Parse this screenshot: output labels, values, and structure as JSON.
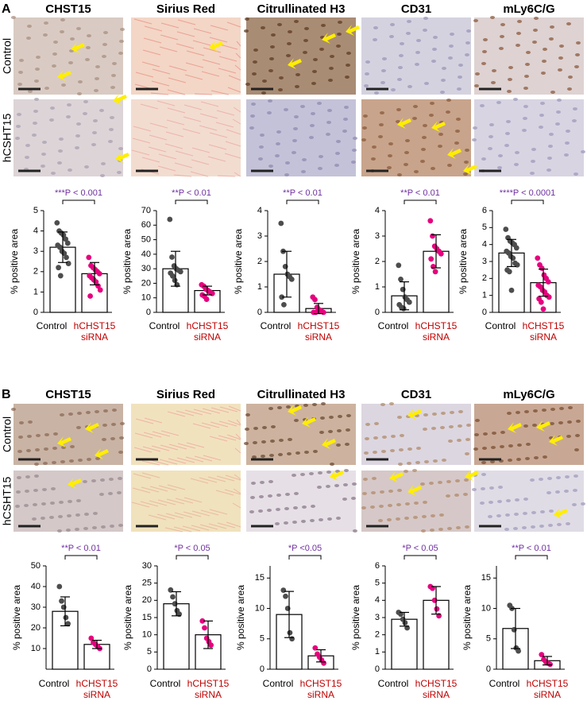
{
  "panels": [
    {
      "label": "A",
      "columns": [
        "CHST15",
        "Sirius Red",
        "Citrullinated H3",
        "CD31",
        "mLy6C/G"
      ],
      "rows": [
        "Control",
        "hCSHT15"
      ]
    },
    {
      "label": "B",
      "columns": [
        "CHST15",
        "Sirius Red",
        "Citrullinated H3",
        "CD31",
        "mLy6C/G"
      ],
      "rows": [
        "Control",
        "hCSHT15"
      ]
    }
  ],
  "chart_data": [
    {
      "type": "bar",
      "annotation": "***P < 0.001",
      "y_label": "% positive area",
      "categories": [
        "Control",
        "hCHST15 siRNA"
      ],
      "values": [
        3.2,
        1.9
      ],
      "errors": [
        0.75,
        0.55
      ],
      "points": [
        [
          4.4,
          4.0,
          3.9,
          3.8,
          3.6,
          3.4,
          3.3,
          3.2,
          3.0,
          2.9,
          2.7,
          2.4,
          2.2,
          1.8
        ],
        [
          2.7,
          2.3,
          2.2,
          2.1,
          2.0,
          1.9,
          1.8,
          1.7,
          1.6,
          1.5,
          1.3,
          1.1,
          0.8
        ]
      ],
      "ylim": [
        0,
        5
      ],
      "yticks": [
        0,
        1,
        2,
        3,
        4,
        5
      ]
    },
    {
      "type": "bar",
      "annotation": "**P < 0.01",
      "y_label": "% positive area",
      "categories": [
        "Control",
        "hCHST15 siRNA"
      ],
      "values": [
        30,
        15
      ],
      "errors": [
        12,
        3
      ],
      "points": [
        [
          64,
          38,
          32,
          30,
          29,
          28,
          27,
          25,
          22,
          19
        ],
        [
          19,
          18,
          16,
          15,
          14,
          13,
          12,
          11,
          9
        ]
      ],
      "ylim": [
        0,
        70
      ],
      "yticks": [
        0,
        10,
        20,
        30,
        40,
        50,
        60,
        70
      ]
    },
    {
      "type": "bar",
      "annotation": "**P < 0.01",
      "y_label": "% positive area",
      "categories": [
        "Control",
        "hCHST15 siRNA"
      ],
      "values": [
        1.5,
        0.15
      ],
      "errors": [
        0.9,
        0.2
      ],
      "points": [
        [
          3.5,
          2.4,
          1.8,
          1.5,
          1.4,
          1.3,
          0.6,
          0.3
        ],
        [
          0.6,
          0.5,
          0.2,
          0.1,
          0.05,
          0,
          0,
          0
        ]
      ],
      "ylim": [
        0,
        4
      ],
      "yticks": [
        0,
        1,
        2,
        3,
        4
      ]
    },
    {
      "type": "bar",
      "annotation": "**P < 0.01",
      "y_label": "% positive area",
      "categories": [
        "Control",
        "hCHST15 siRNA"
      ],
      "values": [
        0.65,
        2.4
      ],
      "errors": [
        0.55,
        0.65
      ],
      "points": [
        [
          1.85,
          1.3,
          0.9,
          0.6,
          0.5,
          0.4,
          0.3,
          0.2,
          0.15
        ],
        [
          3.6,
          3.0,
          2.6,
          2.5,
          2.4,
          2.3,
          2.1,
          1.8,
          1.6
        ]
      ],
      "ylim": [
        0,
        4
      ],
      "yticks": [
        0,
        1,
        2,
        3,
        4
      ]
    },
    {
      "type": "bar",
      "annotation": "****P < 0.0001",
      "y_label": "% positive area",
      "categories": [
        "Control",
        "hCHST15 siRNA"
      ],
      "values": [
        3.5,
        1.75
      ],
      "errors": [
        0.8,
        0.8
      ],
      "points": [
        [
          4.9,
          4.4,
          4.2,
          4.1,
          4.0,
          3.8,
          3.6,
          3.5,
          3.3,
          3.2,
          2.9,
          2.8,
          2.5,
          2.4,
          1.3
        ],
        [
          3.2,
          2.8,
          2.6,
          2.2,
          2.0,
          1.8,
          1.6,
          1.5,
          1.3,
          1.2,
          1.0,
          0.9,
          0.8,
          0.6,
          0.2
        ]
      ],
      "ylim": [
        0,
        6
      ],
      "yticks": [
        0,
        1,
        2,
        3,
        4,
        5,
        6
      ]
    },
    {
      "type": "bar",
      "annotation": "**P < 0.01",
      "y_label": "% positive area",
      "categories": [
        "Control",
        "hCHST15 siRNA"
      ],
      "values": [
        28,
        12
      ],
      "errors": [
        7,
        2
      ],
      "points": [
        [
          40,
          33,
          30,
          25,
          22
        ],
        [
          15,
          13,
          12,
          11,
          10
        ]
      ],
      "ylim": [
        0,
        50
      ],
      "yticks": [
        10,
        20,
        30,
        40,
        50
      ]
    },
    {
      "type": "bar",
      "annotation": "*P < 0.05",
      "y_label": "% positive area",
      "categories": [
        "Control",
        "hCHST15 siRNA"
      ],
      "values": [
        19,
        10
      ],
      "errors": [
        3.5,
        4
      ],
      "points": [
        [
          23,
          21,
          19,
          17,
          16
        ],
        [
          14,
          12,
          9,
          8,
          7
        ]
      ],
      "ylim": [
        0,
        30
      ],
      "yticks": [
        0,
        5,
        10,
        15,
        20,
        25,
        30
      ]
    },
    {
      "type": "bar",
      "annotation": "*P  <0.05",
      "y_label": "% positive area",
      "categories": [
        "Control",
        "hCHST15 siRNA"
      ],
      "values": [
        9,
        2.2
      ],
      "errors": [
        3.8,
        1
      ],
      "points": [
        [
          13,
          12,
          10,
          6,
          5
        ],
        [
          3.5,
          2.5,
          2,
          1.5,
          1
        ]
      ],
      "ylim": [
        0,
        17
      ],
      "yticks": [
        0,
        5,
        10,
        15
      ]
    },
    {
      "type": "bar",
      "annotation": "*P < 0.05",
      "y_label": "% positive area",
      "categories": [
        "Control",
        "hCHST15 siRNA"
      ],
      "values": [
        2.9,
        4
      ],
      "errors": [
        0.4,
        0.8
      ],
      "points": [
        [
          3.3,
          3.2,
          2.9,
          2.7,
          2.4
        ],
        [
          4.8,
          4.7,
          4.0,
          3.5,
          3.1
        ]
      ],
      "ylim": [
        0,
        6
      ],
      "yticks": [
        0,
        1,
        2,
        3,
        4,
        5,
        6
      ]
    },
    {
      "type": "bar",
      "annotation": "**P < 0.01",
      "y_label": "% positive area",
      "categories": [
        "Control",
        "hCHST15 siRNA"
      ],
      "values": [
        6.7,
        1.4
      ],
      "errors": [
        3.3,
        0.7
      ],
      "points": [
        [
          10.5,
          10,
          6.5,
          3.5,
          3
        ],
        [
          2.4,
          1.6,
          1.2,
          1,
          0.8
        ]
      ],
      "ylim": [
        0,
        17
      ],
      "yticks": [
        0,
        5,
        10,
        15
      ]
    }
  ],
  "point_colors": [
    "#4d4d4d",
    "#e6007e"
  ],
  "label_colors": [
    "#000000",
    "#c00000"
  ],
  "annotation_color": "#7030a0"
}
